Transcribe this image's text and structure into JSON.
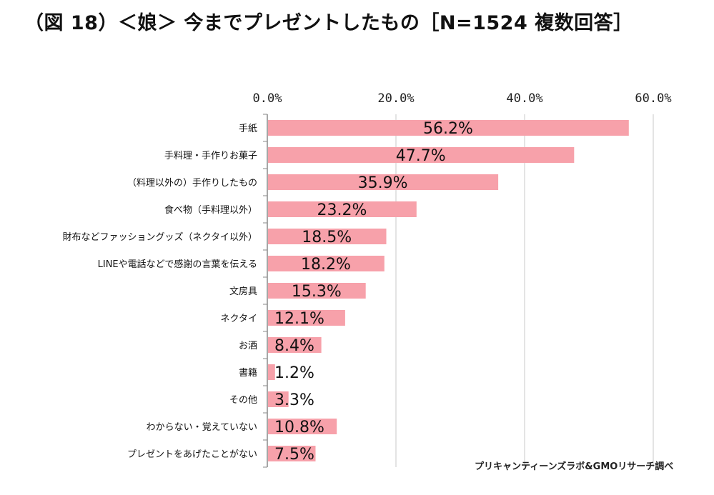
{
  "title": "（図 18）＜娘＞ 今までプレゼントしたもの［N=1524  複数回答］",
  "source": "プリキャンティーンズラボ&GMOリサーチ調べ",
  "colors": {
    "bar": "#F7A1AA",
    "axis": "#8a8a8a",
    "grid": "#c8c8c8"
  },
  "chart_data": {
    "type": "bar",
    "orientation": "horizontal",
    "xlim": [
      0,
      60
    ],
    "ticks": [
      0,
      20,
      40,
      60
    ],
    "tick_labels": [
      "0.0%",
      "20.0%",
      "40.0%",
      "60.0%"
    ],
    "tick_position": "top",
    "grid": true,
    "categories": [
      "手紙",
      "手料理・手作りお菓子",
      "（料理以外の）手作りしたもの",
      "食べ物（手料理以外）",
      "財布などファッショングッズ（ネクタイ以外）",
      "LINEや電話などで感謝の言葉を伝える",
      "文房具",
      "ネクタイ",
      "お酒",
      "書籍",
      "その他",
      "わからない・覚えていない",
      "プレゼントをあげたことがない"
    ],
    "values": [
      56.2,
      47.7,
      35.9,
      23.2,
      18.5,
      18.2,
      15.3,
      12.1,
      8.4,
      1.2,
      3.3,
      10.8,
      7.5
    ],
    "labels": [
      "56.2%",
      "47.7%",
      "35.9%",
      "23.2%",
      "18.5%",
      "18.2%",
      "15.3%",
      "12.1%",
      "8.4%",
      "1.2%",
      "3.3%",
      "10.8%",
      "7.5%"
    ]
  }
}
